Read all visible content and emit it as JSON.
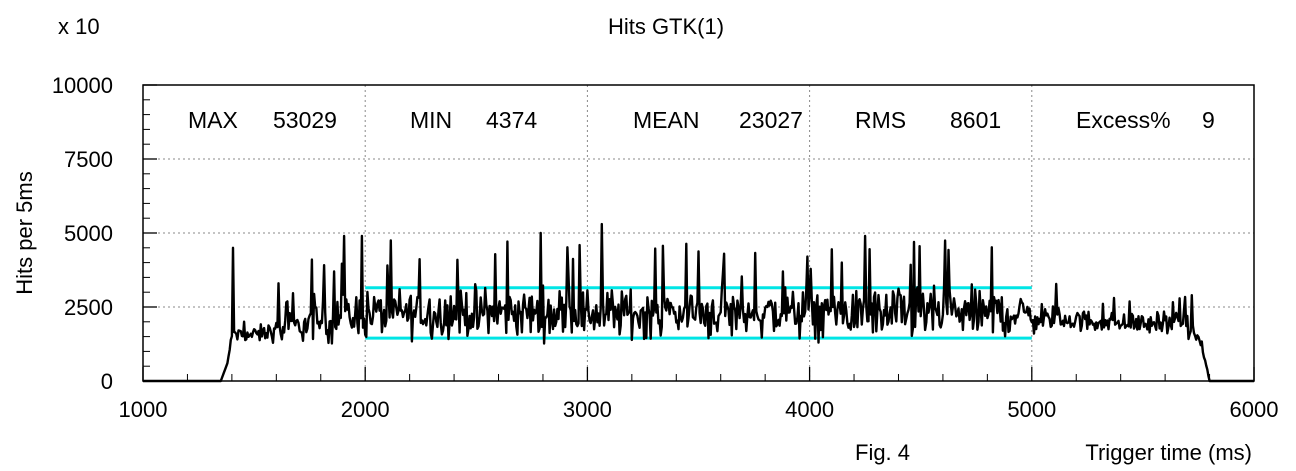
{
  "chart_data": {
    "type": "line",
    "title": "Hits GTK(1)",
    "xlabel": "Trigger time (ms)",
    "ylabel": "Hits per 5ms",
    "y_multiplier_label": "x 10",
    "figure_label": "Fig. 4",
    "xlim": [
      1000,
      6000
    ],
    "ylim": [
      0,
      10000
    ],
    "x_ticks": [
      1000,
      2000,
      3000,
      4000,
      5000,
      6000
    ],
    "y_ticks": [
      0,
      2500,
      5000,
      7500,
      10000
    ],
    "grid": true,
    "stats": [
      {
        "label": "MAX",
        "value": "53029"
      },
      {
        "label": "MIN",
        "value": "4374"
      },
      {
        "label": "MEAN",
        "value": "23027"
      },
      {
        "label": "RMS",
        "value": "8601"
      },
      {
        "label": "Excess%",
        "value": "9"
      }
    ],
    "bands": [
      {
        "x0": 2000,
        "x1": 5000,
        "y": 3150,
        "color": "#00e5e5"
      },
      {
        "x0": 2000,
        "x1": 5000,
        "y": 1450,
        "color": "#00e5e5"
      }
    ],
    "series_envelope": {
      "x": [
        1000,
        1350,
        1380,
        1400,
        1410,
        1420,
        1500,
        1600,
        1700,
        1800,
        1900,
        2000,
        2100,
        2200,
        2300,
        2400,
        2500,
        2600,
        2700,
        2800,
        2900,
        3000,
        3100,
        3200,
        3300,
        3400,
        3500,
        3600,
        3700,
        3800,
        3900,
        4000,
        4100,
        4200,
        4300,
        4400,
        4500,
        4600,
        4700,
        4800,
        4900,
        5000,
        5100,
        5200,
        5300,
        5400,
        5500,
        5600,
        5700,
        5750,
        5780,
        5800,
        6000
      ],
      "mean": [
        0,
        0,
        600,
        1500,
        1700,
        1550,
        1550,
        1700,
        1850,
        2000,
        2150,
        2250,
        2300,
        2300,
        2300,
        2300,
        2300,
        2300,
        2300,
        2300,
        2300,
        2300,
        2300,
        2300,
        2300,
        2300,
        2300,
        2300,
        2300,
        2300,
        2300,
        2300,
        2300,
        2300,
        2300,
        2300,
        2300,
        2300,
        2300,
        2300,
        2300,
        2200,
        2100,
        2050,
        2000,
        1950,
        1950,
        1950,
        1900,
        1400,
        700,
        0,
        0
      ],
      "amplitude": [
        0,
        0,
        0,
        250,
        300,
        280,
        320,
        450,
        600,
        800,
        950,
        1000,
        1000,
        1000,
        1000,
        1000,
        1000,
        1000,
        1000,
        1000,
        1000,
        1000,
        1000,
        1000,
        1000,
        1000,
        1000,
        1000,
        1000,
        1000,
        1000,
        1000,
        1000,
        1000,
        1000,
        1000,
        1000,
        1000,
        1000,
        1000,
        1000,
        700,
        500,
        450,
        420,
        420,
        420,
        450,
        480,
        200,
        100,
        0,
        0
      ]
    },
    "peaks": [
      {
        "x": 1405,
        "y": 4500
      },
      {
        "x": 1610,
        "y": 3300
      },
      {
        "x": 1760,
        "y": 4100
      },
      {
        "x": 1860,
        "y": 3700
      },
      {
        "x": 1905,
        "y": 4900
      },
      {
        "x": 1985,
        "y": 4900
      },
      {
        "x": 2790,
        "y": 5000
      },
      {
        "x": 3065,
        "y": 5300
      },
      {
        "x": 3615,
        "y": 4300
      },
      {
        "x": 4250,
        "y": 4900
      },
      {
        "x": 4470,
        "y": 4700
      },
      {
        "x": 5720,
        "y": 2900
      }
    ]
  }
}
